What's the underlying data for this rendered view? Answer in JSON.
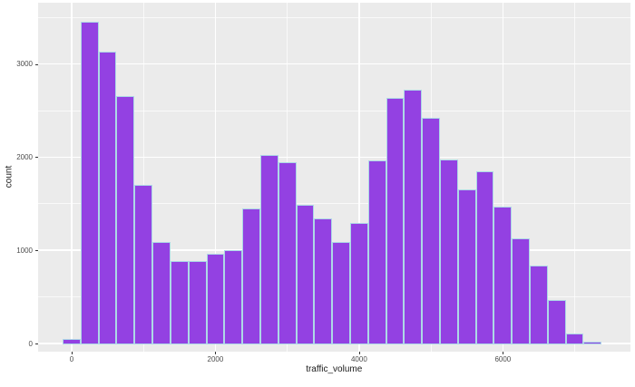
{
  "figure": {
    "background": "#FFFFFF",
    "panel_background": "#EBEBEB",
    "grid_color": "#FFFFFF",
    "tick_mark_color": "#333333",
    "tick_label_color": "#4D4D4D",
    "axis_title_color": "#1A1A1A"
  },
  "chart_data": {
    "type": "bar",
    "subtype": "histogram",
    "title": "",
    "xlabel": "traffic_volume",
    "ylabel": "count",
    "bar_fill": "#9341E2",
    "bar_stroke": "#ADD8E6",
    "bin_start": -125,
    "bin_width": 250,
    "bin_centers": [
      0,
      250,
      500,
      750,
      1000,
      1250,
      1500,
      1750,
      2000,
      2250,
      2500,
      2750,
      3000,
      3250,
      3500,
      3750,
      4000,
      4250,
      4500,
      4750,
      5000,
      5250,
      5500,
      5750,
      6000,
      6250,
      6500,
      6750,
      7000,
      7250
    ],
    "counts": [
      50,
      3455,
      3130,
      2655,
      1705,
      1090,
      890,
      890,
      965,
      1000,
      1450,
      2025,
      1950,
      1485,
      1345,
      1090,
      1290,
      1965,
      2640,
      2725,
      2420,
      1975,
      1650,
      1845,
      1470,
      1125,
      840,
      470,
      110,
      8
    ],
    "x_ticks": [
      0,
      2000,
      4000,
      6000
    ],
    "x_minor_ticks": [
      1000,
      3000,
      5000,
      7000
    ],
    "y_ticks": [
      0,
      1000,
      2000,
      3000
    ],
    "y_minor_ticks": [
      500,
      1500,
      2500,
      3500
    ],
    "x_domain": [
      -473,
      7775
    ],
    "y_domain": [
      -87.5,
      3658
    ],
    "grid": true,
    "legend": "none"
  }
}
